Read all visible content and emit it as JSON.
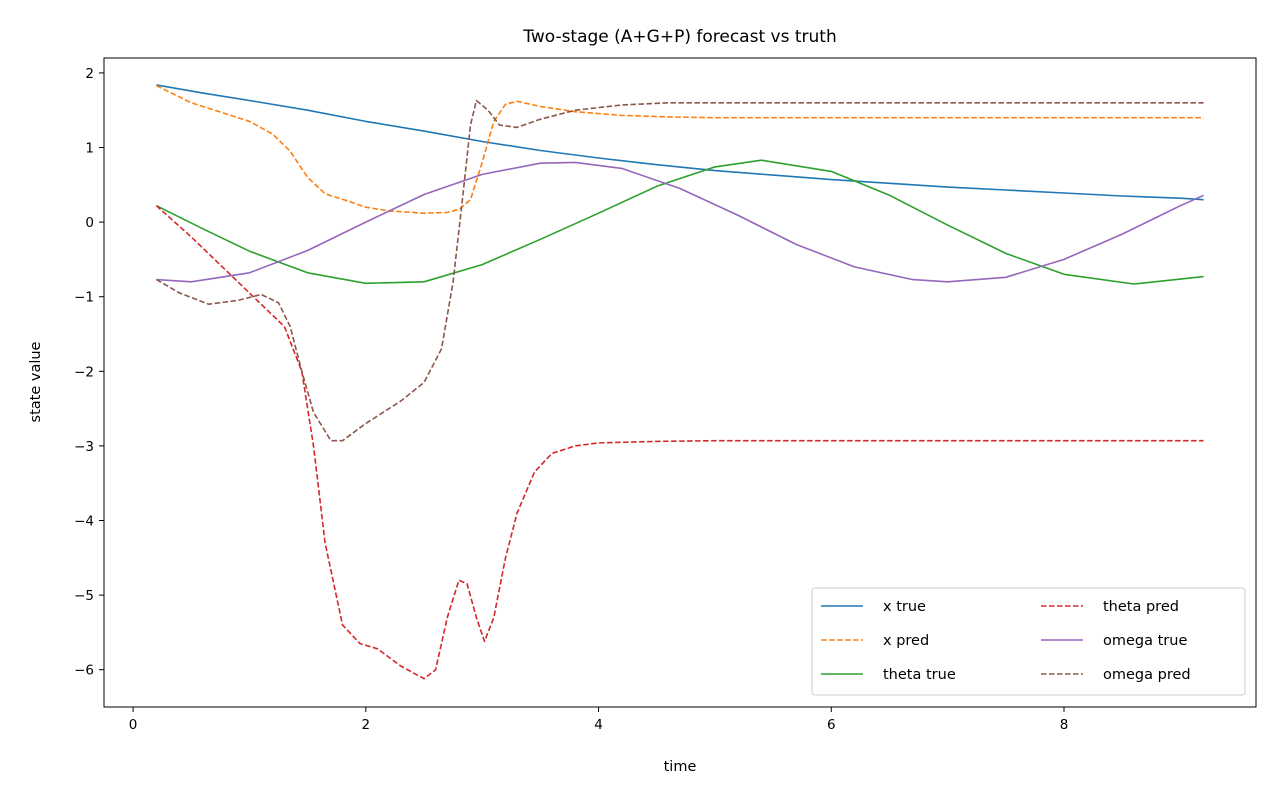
{
  "chart_data": {
    "type": "line",
    "title": "Two-stage (A+G+P) forecast vs truth",
    "xlabel": "time",
    "ylabel": "state value",
    "xlim": [
      -0.25,
      9.65
    ],
    "ylim": [
      -6.5,
      2.2
    ],
    "xticks": [
      0,
      2,
      4,
      6,
      8
    ],
    "xtick_labels": [
      "0",
      "2",
      "4",
      "6",
      "8"
    ],
    "yticks": [
      2,
      1,
      0,
      -1,
      -2,
      -3,
      -4,
      -5,
      -6
    ],
    "ytick_labels": [
      "2",
      "1",
      "0",
      "−1",
      "−2",
      "−3",
      "−4",
      "−5",
      "−6"
    ],
    "grid": false,
    "legend_location": "lower right",
    "legend_columns": 2,
    "series": [
      {
        "name": "x true",
        "color": "#1f77b4",
        "style": "solid",
        "points": [
          [
            0.2,
            1.84
          ],
          [
            0.6,
            1.73
          ],
          [
            1.0,
            1.63
          ],
          [
            1.5,
            1.5
          ],
          [
            2.0,
            1.35
          ],
          [
            2.5,
            1.22
          ],
          [
            3.0,
            1.08
          ],
          [
            3.5,
            0.96
          ],
          [
            4.0,
            0.86
          ],
          [
            4.5,
            0.77
          ],
          [
            5.0,
            0.69
          ],
          [
            5.5,
            0.63
          ],
          [
            6.0,
            0.57
          ],
          [
            6.5,
            0.52
          ],
          [
            7.0,
            0.47
          ],
          [
            7.5,
            0.43
          ],
          [
            8.0,
            0.39
          ],
          [
            8.5,
            0.35
          ],
          [
            9.0,
            0.32
          ],
          [
            9.2,
            0.3
          ]
        ]
      },
      {
        "name": "x pred",
        "color": "#ff7f0e",
        "style": "dashed",
        "points": [
          [
            0.2,
            1.83
          ],
          [
            0.5,
            1.6
          ],
          [
            0.8,
            1.45
          ],
          [
            1.0,
            1.35
          ],
          [
            1.2,
            1.18
          ],
          [
            1.35,
            0.95
          ],
          [
            1.5,
            0.6
          ],
          [
            1.65,
            0.38
          ],
          [
            1.85,
            0.28
          ],
          [
            2.0,
            0.2
          ],
          [
            2.2,
            0.15
          ],
          [
            2.5,
            0.12
          ],
          [
            2.7,
            0.13
          ],
          [
            2.8,
            0.17
          ],
          [
            2.9,
            0.3
          ],
          [
            3.0,
            0.8
          ],
          [
            3.1,
            1.35
          ],
          [
            3.2,
            1.58
          ],
          [
            3.3,
            1.62
          ],
          [
            3.5,
            1.55
          ],
          [
            3.8,
            1.48
          ],
          [
            4.2,
            1.43
          ],
          [
            4.6,
            1.41
          ],
          [
            5.0,
            1.4
          ],
          [
            6.0,
            1.4
          ],
          [
            7.0,
            1.4
          ],
          [
            8.0,
            1.4
          ],
          [
            9.2,
            1.4
          ]
        ]
      },
      {
        "name": "theta true",
        "color": "#2ca02c",
        "style": "solid",
        "points": [
          [
            0.2,
            0.22
          ],
          [
            0.6,
            -0.09
          ],
          [
            1.0,
            -0.39
          ],
          [
            1.5,
            -0.68
          ],
          [
            2.0,
            -0.82
          ],
          [
            2.5,
            -0.8
          ],
          [
            3.0,
            -0.57
          ],
          [
            3.5,
            -0.23
          ],
          [
            4.0,
            0.12
          ],
          [
            4.5,
            0.48
          ],
          [
            5.0,
            0.74
          ],
          [
            5.4,
            0.83
          ],
          [
            6.0,
            0.68
          ],
          [
            6.5,
            0.36
          ],
          [
            7.0,
            -0.04
          ],
          [
            7.5,
            -0.42
          ],
          [
            8.0,
            -0.7
          ],
          [
            8.6,
            -0.83
          ],
          [
            9.2,
            -0.73
          ]
        ]
      },
      {
        "name": "theta pred",
        "color": "#d62728",
        "style": "dashed",
        "points": [
          [
            0.2,
            0.22
          ],
          [
            0.5,
            -0.2
          ],
          [
            0.8,
            -0.65
          ],
          [
            1.1,
            -1.1
          ],
          [
            1.3,
            -1.4
          ],
          [
            1.45,
            -2.0
          ],
          [
            1.55,
            -3.0
          ],
          [
            1.65,
            -4.3
          ],
          [
            1.8,
            -5.4
          ],
          [
            1.95,
            -5.65
          ],
          [
            2.1,
            -5.72
          ],
          [
            2.3,
            -5.95
          ],
          [
            2.5,
            -6.12
          ],
          [
            2.6,
            -6.0
          ],
          [
            2.7,
            -5.3
          ],
          [
            2.8,
            -4.8
          ],
          [
            2.87,
            -4.85
          ],
          [
            2.95,
            -5.3
          ],
          [
            3.02,
            -5.62
          ],
          [
            3.1,
            -5.3
          ],
          [
            3.2,
            -4.5
          ],
          [
            3.3,
            -3.9
          ],
          [
            3.45,
            -3.35
          ],
          [
            3.6,
            -3.1
          ],
          [
            3.8,
            -3.0
          ],
          [
            4.0,
            -2.96
          ],
          [
            4.5,
            -2.94
          ],
          [
            5.0,
            -2.93
          ],
          [
            6.0,
            -2.93
          ],
          [
            7.0,
            -2.93
          ],
          [
            8.0,
            -2.93
          ],
          [
            9.2,
            -2.93
          ]
        ]
      },
      {
        "name": "omega true",
        "color": "#9467bd",
        "style": "solid",
        "points": [
          [
            0.2,
            -0.77
          ],
          [
            0.5,
            -0.8
          ],
          [
            1.0,
            -0.68
          ],
          [
            1.5,
            -0.38
          ],
          [
            2.0,
            0.0
          ],
          [
            2.5,
            0.37
          ],
          [
            3.0,
            0.64
          ],
          [
            3.5,
            0.79
          ],
          [
            3.8,
            0.8
          ],
          [
            4.2,
            0.72
          ],
          [
            4.7,
            0.45
          ],
          [
            5.2,
            0.09
          ],
          [
            5.7,
            -0.3
          ],
          [
            6.2,
            -0.6
          ],
          [
            6.7,
            -0.77
          ],
          [
            7.0,
            -0.8
          ],
          [
            7.5,
            -0.74
          ],
          [
            8.0,
            -0.5
          ],
          [
            8.5,
            -0.16
          ],
          [
            9.0,
            0.22
          ],
          [
            9.2,
            0.36
          ]
        ]
      },
      {
        "name": "omega pred",
        "color": "#8c564b",
        "style": "dashed",
        "points": [
          [
            0.2,
            -0.77
          ],
          [
            0.4,
            -0.95
          ],
          [
            0.65,
            -1.1
          ],
          [
            0.9,
            -1.05
          ],
          [
            1.1,
            -0.97
          ],
          [
            1.25,
            -1.08
          ],
          [
            1.35,
            -1.4
          ],
          [
            1.45,
            -2.0
          ],
          [
            1.55,
            -2.55
          ],
          [
            1.7,
            -2.93
          ],
          [
            1.8,
            -2.93
          ],
          [
            2.0,
            -2.7
          ],
          [
            2.3,
            -2.4
          ],
          [
            2.5,
            -2.15
          ],
          [
            2.65,
            -1.7
          ],
          [
            2.75,
            -0.8
          ],
          [
            2.83,
            0.3
          ],
          [
            2.9,
            1.3
          ],
          [
            2.95,
            1.63
          ],
          [
            3.05,
            1.5
          ],
          [
            3.15,
            1.3
          ],
          [
            3.3,
            1.27
          ],
          [
            3.5,
            1.38
          ],
          [
            3.8,
            1.5
          ],
          [
            4.2,
            1.57
          ],
          [
            4.6,
            1.6
          ],
          [
            5.0,
            1.6
          ],
          [
            6.0,
            1.6
          ],
          [
            7.0,
            1.6
          ],
          [
            8.0,
            1.6
          ],
          [
            9.2,
            1.6
          ]
        ]
      }
    ]
  }
}
